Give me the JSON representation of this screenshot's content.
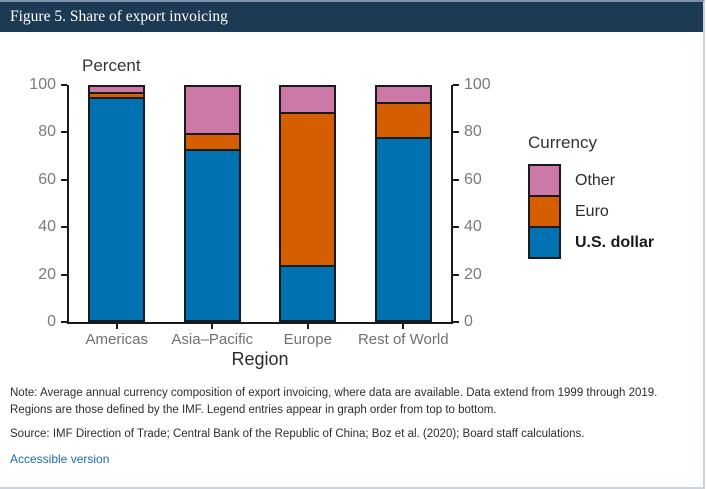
{
  "header": {
    "title": "Figure 5. Share of export invoicing"
  },
  "chart_data": {
    "type": "bar",
    "stacked": true,
    "ylabel": "Percent",
    "xlabel": "Region",
    "categories": [
      "Americas",
      "Asia–Pacific",
      "Europe",
      "Rest of World"
    ],
    "series": [
      {
        "name": "U.S. dollar",
        "color": "#0072B2",
        "values": [
          96.3,
          74.0,
          23.1,
          79.0
        ]
      },
      {
        "name": "Euro",
        "color": "#D55E00",
        "values": [
          1.7,
          5.7,
          66.1,
          14.4
        ]
      },
      {
        "name": "Other",
        "color": "#CC79A7",
        "values": [
          2.0,
          20.3,
          10.8,
          6.6
        ]
      }
    ],
    "ylim": [
      0,
      100
    ],
    "yticks": [
      0,
      20,
      40,
      60,
      80,
      100
    ],
    "grid": false,
    "legend": {
      "title": "Currency",
      "position": "right",
      "entries_top_to_bottom": [
        {
          "label": "Other",
          "bold": false
        },
        {
          "label": "Euro",
          "bold": false
        },
        {
          "label": "U.S. dollar",
          "bold": true
        }
      ]
    }
  },
  "notes": {
    "note": "Note: Average annual currency composition of export invoicing, where data are available. Data extend from 1999 through 2019. Regions are those defined by the IMF. Legend entries appear in graph order from top to bottom.",
    "source": "Source: IMF Direction of Trade; Central Bank of the Republic of China; Boz et al. (2020); Board staff calculations.",
    "link": "Accessible version"
  },
  "colors": {
    "header_bg": "#1d3a55",
    "link": "#1b6cb5",
    "axis": "#1a1a1a",
    "tick_text": "#7a7a7a",
    "border": "#c9d4e0"
  }
}
